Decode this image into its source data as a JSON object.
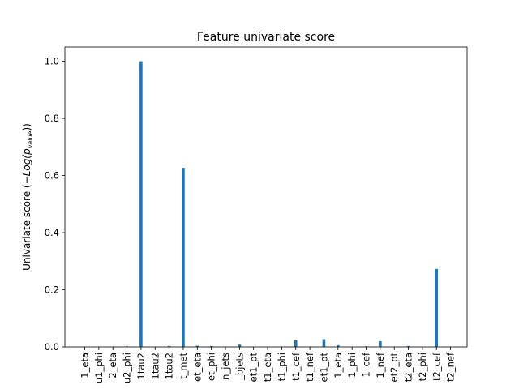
{
  "chart_data": {
    "type": "bar",
    "title": "Feature univariate score",
    "xlabel": "",
    "ylabel_prefix": "Univariate score (",
    "ylabel_math": "−Log(p",
    "ylabel_sub": "value",
    "ylabel_suffix": "))",
    "ylim": [
      0,
      1.05
    ],
    "yticks": [
      0.0,
      0.2,
      0.4,
      0.6,
      0.8,
      1.0
    ],
    "ytick_labels": [
      "0.0",
      "0.2",
      "0.4",
      "0.6",
      "0.8",
      "1.0"
    ],
    "color": "#1f77b4",
    "categories": [
      "1_eta",
      "u1_phi",
      "2_eta",
      "u2_phi",
      "1tau2",
      "1tau2",
      "1tau2",
      "t_met",
      "et_eta",
      "et_phi",
      "n_jets",
      "_bjets",
      "et1_pt",
      "t1_eta",
      "t1_phi",
      "t1_cef",
      "t1_nef",
      "et1_pt",
      "1_eta",
      "1_phi",
      "1_cef",
      "1_nef",
      "et2_pt",
      "t2_eta",
      "t2_phi",
      "t2_cef",
      "t2_nef"
    ],
    "values": [
      0.0,
      0.0,
      0.0,
      0.002,
      1.0,
      0.0,
      0.003,
      0.627,
      0.004,
      0.003,
      0.0,
      0.008,
      0.0,
      0.0,
      0.0,
      0.023,
      0.0,
      0.027,
      0.006,
      0.0,
      0.002,
      0.02,
      0.0,
      0.003,
      0.0,
      0.273,
      0.0
    ]
  }
}
